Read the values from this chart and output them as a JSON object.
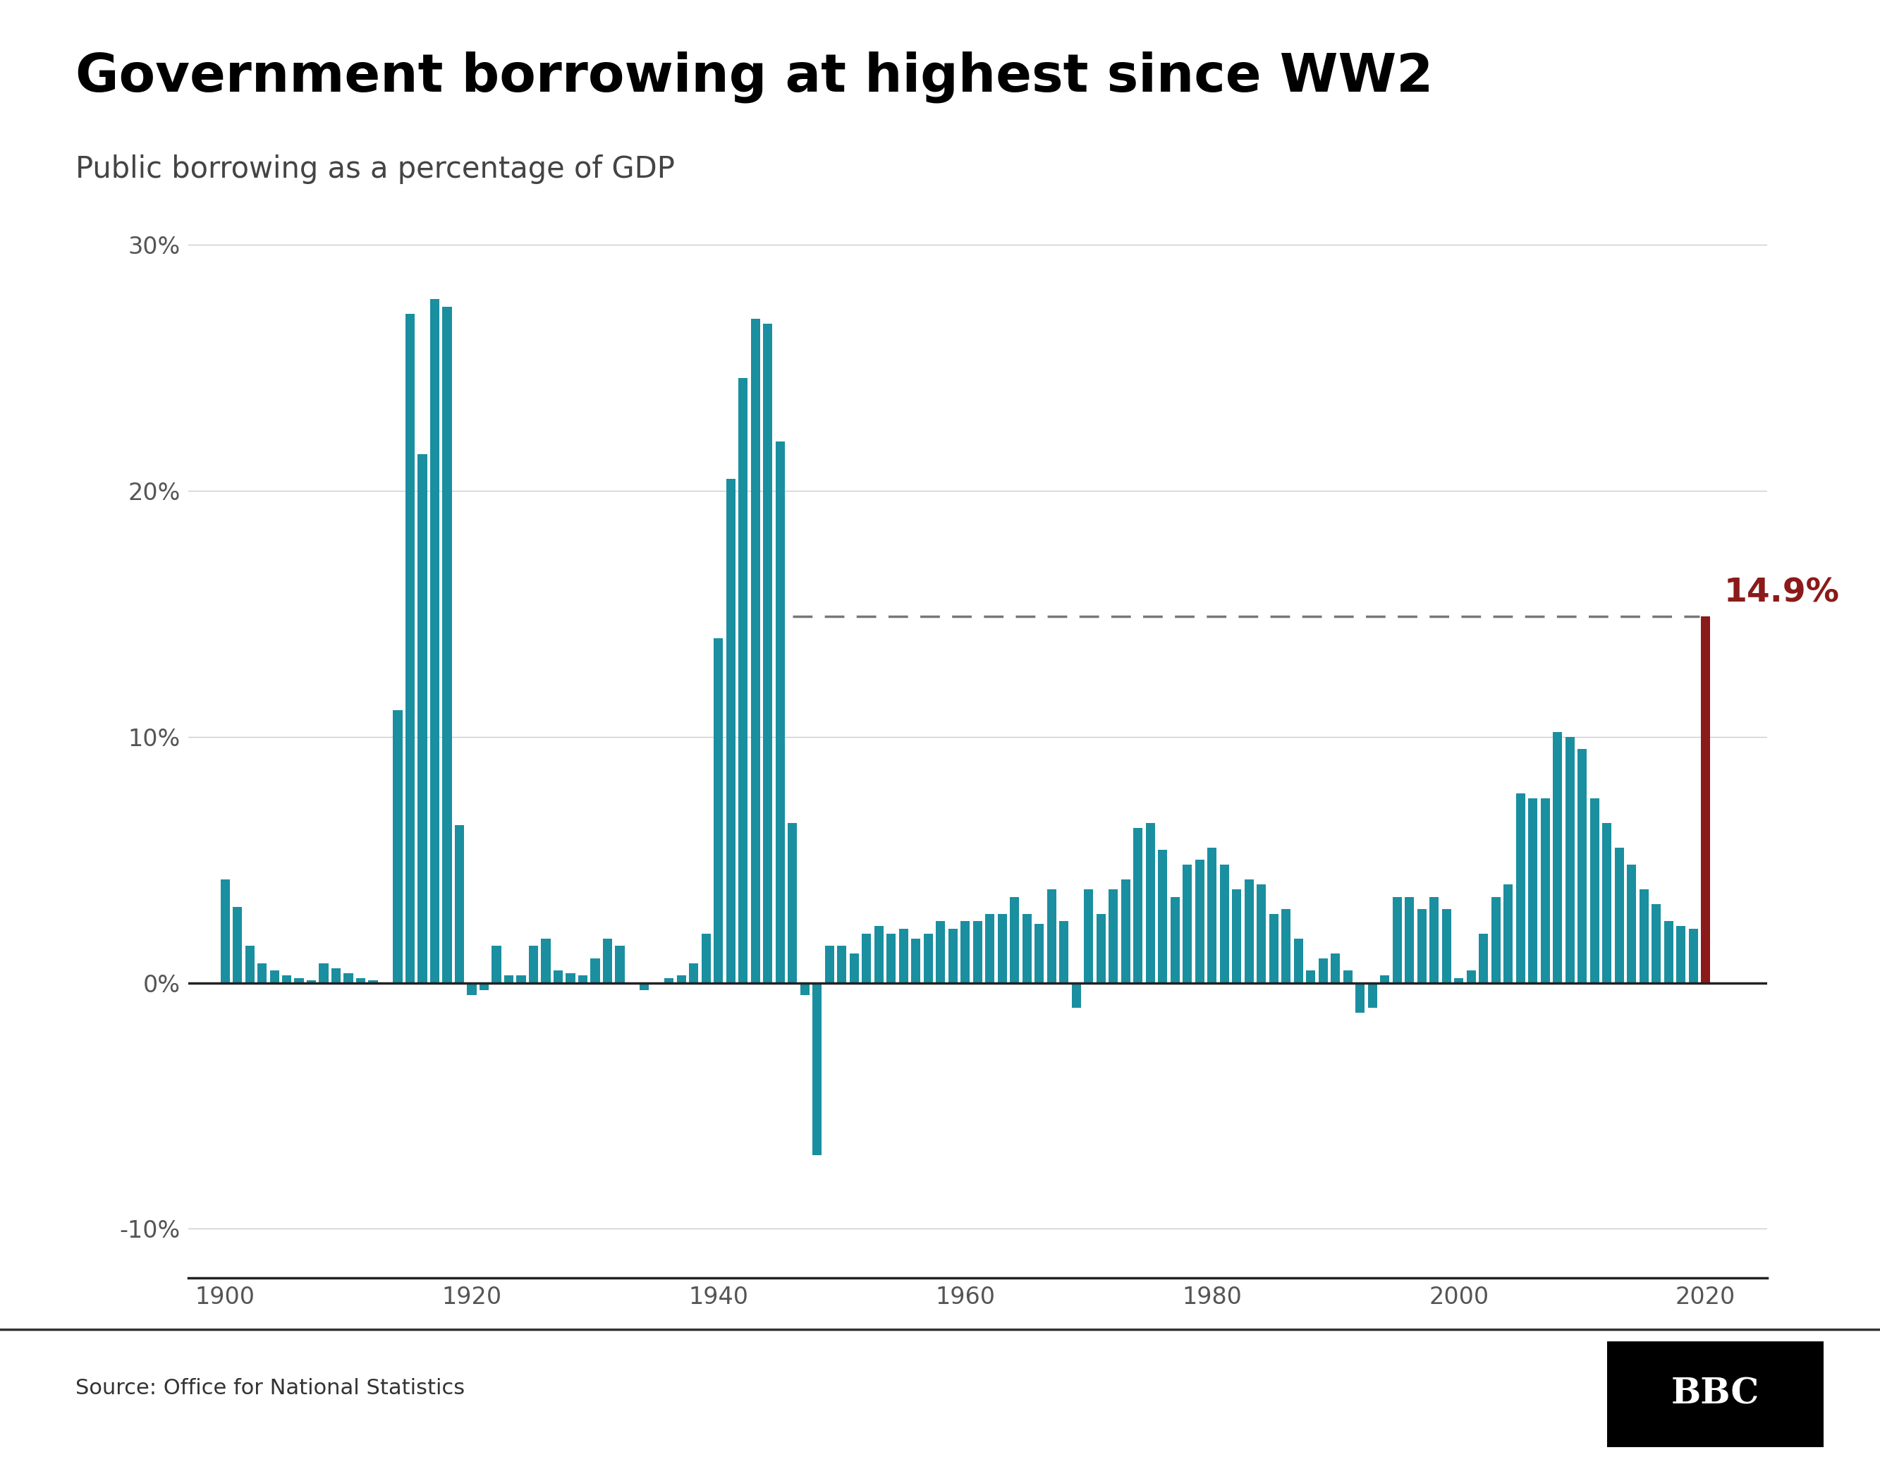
{
  "title": "Government borrowing at highest since WW2",
  "subtitle": "Public borrowing as a percentage of GDP",
  "source": "Source: Office for National Statistics",
  "bar_color": "#1a8fa0",
  "highlight_color": "#8b1a1a",
  "annotation_color": "#8b1a1a",
  "background_color": "#ffffff",
  "ylim": [
    -12,
    31
  ],
  "yticks": [
    -10,
    0,
    10,
    20,
    30
  ],
  "ytick_labels": [
    "-10%",
    "0%",
    "10%",
    "20%",
    "30%"
  ],
  "dashed_line_y": 14.9,
  "annotation_text": "14.9%",
  "years": [
    1900,
    1901,
    1902,
    1903,
    1904,
    1905,
    1906,
    1907,
    1908,
    1909,
    1910,
    1911,
    1912,
    1913,
    1914,
    1915,
    1916,
    1917,
    1918,
    1919,
    1920,
    1921,
    1922,
    1923,
    1924,
    1925,
    1926,
    1927,
    1928,
    1929,
    1930,
    1931,
    1932,
    1933,
    1934,
    1935,
    1936,
    1937,
    1938,
    1939,
    1940,
    1941,
    1942,
    1943,
    1944,
    1945,
    1946,
    1947,
    1948,
    1949,
    1950,
    1951,
    1952,
    1953,
    1954,
    1955,
    1956,
    1957,
    1958,
    1959,
    1960,
    1961,
    1962,
    1963,
    1964,
    1965,
    1966,
    1967,
    1968,
    1969,
    1970,
    1971,
    1972,
    1973,
    1974,
    1975,
    1976,
    1977,
    1978,
    1979,
    1980,
    1981,
    1982,
    1983,
    1984,
    1985,
    1986,
    1987,
    1988,
    1989,
    1990,
    1991,
    1992,
    1993,
    1994,
    1995,
    1996,
    1997,
    1998,
    1999,
    2000,
    2001,
    2002,
    2003,
    2004,
    2005,
    2006,
    2007,
    2008,
    2009,
    2010,
    2011,
    2012,
    2013,
    2014,
    2015,
    2016,
    2017,
    2018,
    2019,
    2020
  ],
  "values": [
    4.2,
    3.1,
    1.5,
    0.8,
    0.5,
    0.3,
    0.2,
    0.1,
    0.8,
    0.6,
    0.4,
    0.2,
    0.1,
    0.0,
    11.1,
    27.2,
    21.5,
    27.8,
    27.5,
    6.4,
    -0.5,
    -0.3,
    1.5,
    0.3,
    0.3,
    1.5,
    1.8,
    0.5,
    0.4,
    0.3,
    1.0,
    1.8,
    1.5,
    0.0,
    -0.3,
    0.0,
    0.2,
    0.3,
    0.8,
    2.0,
    14.0,
    20.5,
    24.6,
    27.0,
    26.8,
    22.0,
    6.5,
    -0.5,
    -7.0,
    1.5,
    1.5,
    1.2,
    2.0,
    2.3,
    2.0,
    2.2,
    1.8,
    2.0,
    2.5,
    2.2,
    2.5,
    2.5,
    2.8,
    2.8,
    3.5,
    2.8,
    2.4,
    3.8,
    2.5,
    -1.0,
    3.8,
    2.8,
    3.8,
    4.2,
    6.3,
    6.5,
    5.4,
    3.5,
    4.8,
    5.0,
    5.5,
    4.8,
    3.8,
    4.2,
    4.0,
    2.8,
    3.0,
    1.8,
    0.5,
    1.0,
    1.2,
    0.5,
    -1.2,
    -1.0,
    0.3,
    3.5,
    3.5,
    3.0,
    3.5,
    3.0,
    0.2,
    0.5,
    2.0,
    3.5,
    4.0,
    7.7,
    7.5,
    7.5,
    10.2,
    10.0,
    9.5,
    7.5,
    6.5,
    5.5,
    4.8,
    3.8,
    3.2,
    2.5,
    2.3,
    2.2,
    14.9
  ]
}
